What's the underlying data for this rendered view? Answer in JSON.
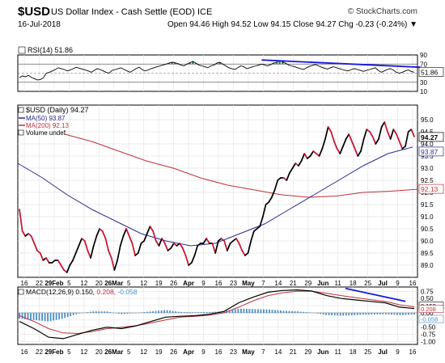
{
  "header": {
    "symbol": "$USD",
    "name": "US Dollar Index - Cash Settle (EOD) ICE",
    "date": "16-Jul-2018",
    "logo": "© StockCharts.com",
    "quote": "Open 94.46 High 94.52 Low 94.15 Close 94.27 Chg -0.23 (-0.24%) ▼"
  },
  "x_axis_labels": [
    "16",
    "22",
    "29Feb",
    "5",
    "12",
    "20",
    "26Mar",
    "5",
    "12",
    "19",
    "26",
    "Apr",
    "9",
    "16",
    "23",
    "May",
    "7",
    "14",
    "21",
    "29",
    "Jun",
    "11",
    "18",
    "25",
    "Jul",
    "9",
    "16"
  ],
  "colors": {
    "price_up": "#000000",
    "price_down": "#c8102e",
    "ma50": "#2b2b8c",
    "ma200": "#c0303a",
    "trendline": "#1a1adb",
    "hist": "#4a90c8",
    "rsi_fill": "#2e7d4f"
  },
  "chart_data": [
    {
      "type": "line",
      "title": "RSI(14) 51.86",
      "ylim": [
        10,
        90
      ],
      "gridlines": [
        70,
        50,
        30
      ],
      "tick_labels": [
        "90",
        "70",
        "50",
        "30",
        "10"
      ],
      "value_label": "51.86",
      "series": [
        {
          "name": "RSI(14)",
          "values": [
            40,
            44,
            42,
            45,
            41,
            38,
            35,
            36,
            40,
            50,
            52,
            55,
            58,
            62,
            60,
            58,
            55,
            57,
            60,
            63,
            61,
            59,
            57,
            55,
            52,
            56,
            60,
            58,
            55,
            52,
            50,
            56,
            58,
            60,
            62,
            58,
            55,
            52,
            56,
            60,
            63,
            58,
            55,
            57,
            60,
            62,
            64,
            66,
            68,
            70,
            72,
            74,
            73,
            71,
            68,
            66,
            70,
            73,
            76,
            72,
            68,
            66,
            64,
            62,
            66,
            68,
            72,
            74,
            70,
            66,
            62,
            60,
            58,
            62,
            66,
            64,
            60,
            62,
            64,
            66,
            68,
            70,
            68,
            66,
            69,
            72,
            74,
            78,
            75,
            72,
            68,
            66,
            64,
            62,
            60,
            58,
            62,
            65,
            67,
            69,
            66,
            63,
            61,
            59,
            62,
            64,
            62,
            60,
            58,
            56,
            55,
            58,
            60,
            58,
            56,
            54,
            56,
            58,
            60,
            62,
            56,
            52,
            55,
            58,
            60,
            57,
            52,
            50,
            52,
            55,
            57,
            54,
            52
          ]
        }
      ],
      "trendline": {
        "x": [
          81,
          134
        ],
        "y": [
          79,
          63
        ]
      }
    },
    {
      "type": "line",
      "title": "$USD (Daily) 94.27",
      "ylim": [
        88.5,
        95.6
      ],
      "tick_labels": [
        "95.0",
        "94.5",
        "94.0",
        "93.5",
        "93.0",
        "92.5",
        "92.0",
        "91.5",
        "91.0",
        "90.5",
        "90.0",
        "89.5",
        "89.0"
      ],
      "legend": [
        "$USD (Daily) 94.27",
        "MA(50) 93.87",
        "MA(200) 92.13",
        "Volume undef"
      ],
      "value_labels": [
        "94.27",
        "93.87",
        "92.13"
      ],
      "series": [
        {
          "name": "$USD (Daily) 94.27",
          "values": [
            91.3,
            90.4,
            90.2,
            90.3,
            90.2,
            89.9,
            89.6,
            89.5,
            89.2,
            89.3,
            89.1,
            89.1,
            89.2,
            89.2,
            89.0,
            88.8,
            88.7,
            89.0,
            89.2,
            89.5,
            89.8,
            90.1,
            90.0,
            89.6,
            89.3,
            89.8,
            90.2,
            90.5,
            90.4,
            90.1,
            89.6,
            89.3,
            88.8,
            89.2,
            89.8,
            90.2,
            90.5,
            90.2,
            89.9,
            89.4,
            89.5,
            89.9,
            90.0,
            90.3,
            90.6,
            90.4,
            90.0,
            89.8,
            90.1,
            89.9,
            89.6,
            89.7,
            89.9,
            89.8,
            89.9,
            89.7,
            89.4,
            89.0,
            89.1,
            89.4,
            89.8,
            89.9,
            89.9,
            90.1,
            89.9,
            89.9,
            89.5,
            90.0,
            90.1,
            90.0,
            89.6,
            89.9,
            90.0,
            90.1,
            89.9,
            89.6,
            89.4,
            89.5,
            90.0,
            90.4,
            90.5,
            90.6,
            91.0,
            91.5,
            91.6,
            91.8,
            92.1,
            92.5,
            92.6,
            92.6,
            92.5,
            92.8,
            93.0,
            93.2,
            93.1,
            93.3,
            93.6,
            93.4,
            93.5,
            93.7,
            93.6,
            93.5,
            93.8,
            94.2,
            94.7,
            94.5,
            94.1,
            93.8,
            93.6,
            93.9,
            94.2,
            94.4,
            94.1,
            93.8,
            93.5,
            93.7,
            94.2,
            94.6,
            94.5,
            94.3,
            94.0,
            94.2,
            94.7,
            94.9,
            94.5,
            94.2,
            94.6,
            94.4,
            94.1,
            93.8,
            93.9,
            94.5,
            94.6,
            94.3
          ]
        },
        {
          "name": "MA(50) 93.87",
          "values": [
            93.2,
            92.6,
            91.9,
            91.3,
            90.8,
            90.3,
            90.0,
            89.8,
            89.9,
            90.3,
            90.7,
            91.3,
            91.9,
            92.5,
            93.1,
            93.6,
            93.87
          ]
        },
        {
          "name": "MA(200) 92.13",
          "values": [
            94.4,
            94.1,
            93.7,
            93.3,
            93.0,
            92.6,
            92.3,
            92.1,
            91.9,
            91.8,
            91.85,
            92.0,
            92.05,
            92.13
          ]
        }
      ]
    },
    {
      "type": "line",
      "title": "MACD(12,26,9) 0.150, 0.208, -0.058",
      "ylim": [
        -1.1,
        0.9
      ],
      "tick_labels": [
        "0.75",
        "0.50",
        "0.25",
        "0.00",
        "-0.25",
        "-0.50",
        "-0.75",
        "-1.00"
      ],
      "value_labels": [
        "0.150",
        "0.208",
        "-0.058"
      ],
      "series": [
        {
          "name": "MACD",
          "values": [
            -0.3,
            -0.55,
            -0.85,
            -0.9,
            -0.75,
            -0.6,
            -0.5,
            -0.55,
            -0.45,
            -0.3,
            -0.15,
            -0.12,
            -0.1,
            -0.05,
            0.05,
            0.35,
            0.55,
            0.72,
            0.78,
            0.8,
            0.76,
            0.6,
            0.5,
            0.45,
            0.4,
            0.35,
            0.2,
            0.15
          ]
        },
        {
          "name": "Signal",
          "values": [
            -0.1,
            -0.3,
            -0.55,
            -0.7,
            -0.72,
            -0.65,
            -0.55,
            -0.5,
            -0.45,
            -0.35,
            -0.25,
            -0.15,
            -0.12,
            -0.08,
            0.0,
            0.2,
            0.42,
            0.6,
            0.7,
            0.75,
            0.75,
            0.68,
            0.6,
            0.53,
            0.46,
            0.4,
            0.28,
            0.208
          ]
        },
        {
          "name": "Histogram",
          "values": [
            -0.2,
            -0.25,
            -0.3,
            -0.2,
            -0.03,
            0.05,
            0.05,
            -0.05,
            0.0,
            0.05,
            0.1,
            0.03,
            0.02,
            0.03,
            0.05,
            0.15,
            0.13,
            0.12,
            0.08,
            0.05,
            0.01,
            -0.08,
            -0.1,
            -0.08,
            -0.06,
            -0.05,
            -0.08,
            -0.058
          ]
        }
      ],
      "trendline": {
        "x": [
          0.82,
          0.97
        ],
        "y": [
          0.85,
          0.4
        ]
      }
    }
  ]
}
